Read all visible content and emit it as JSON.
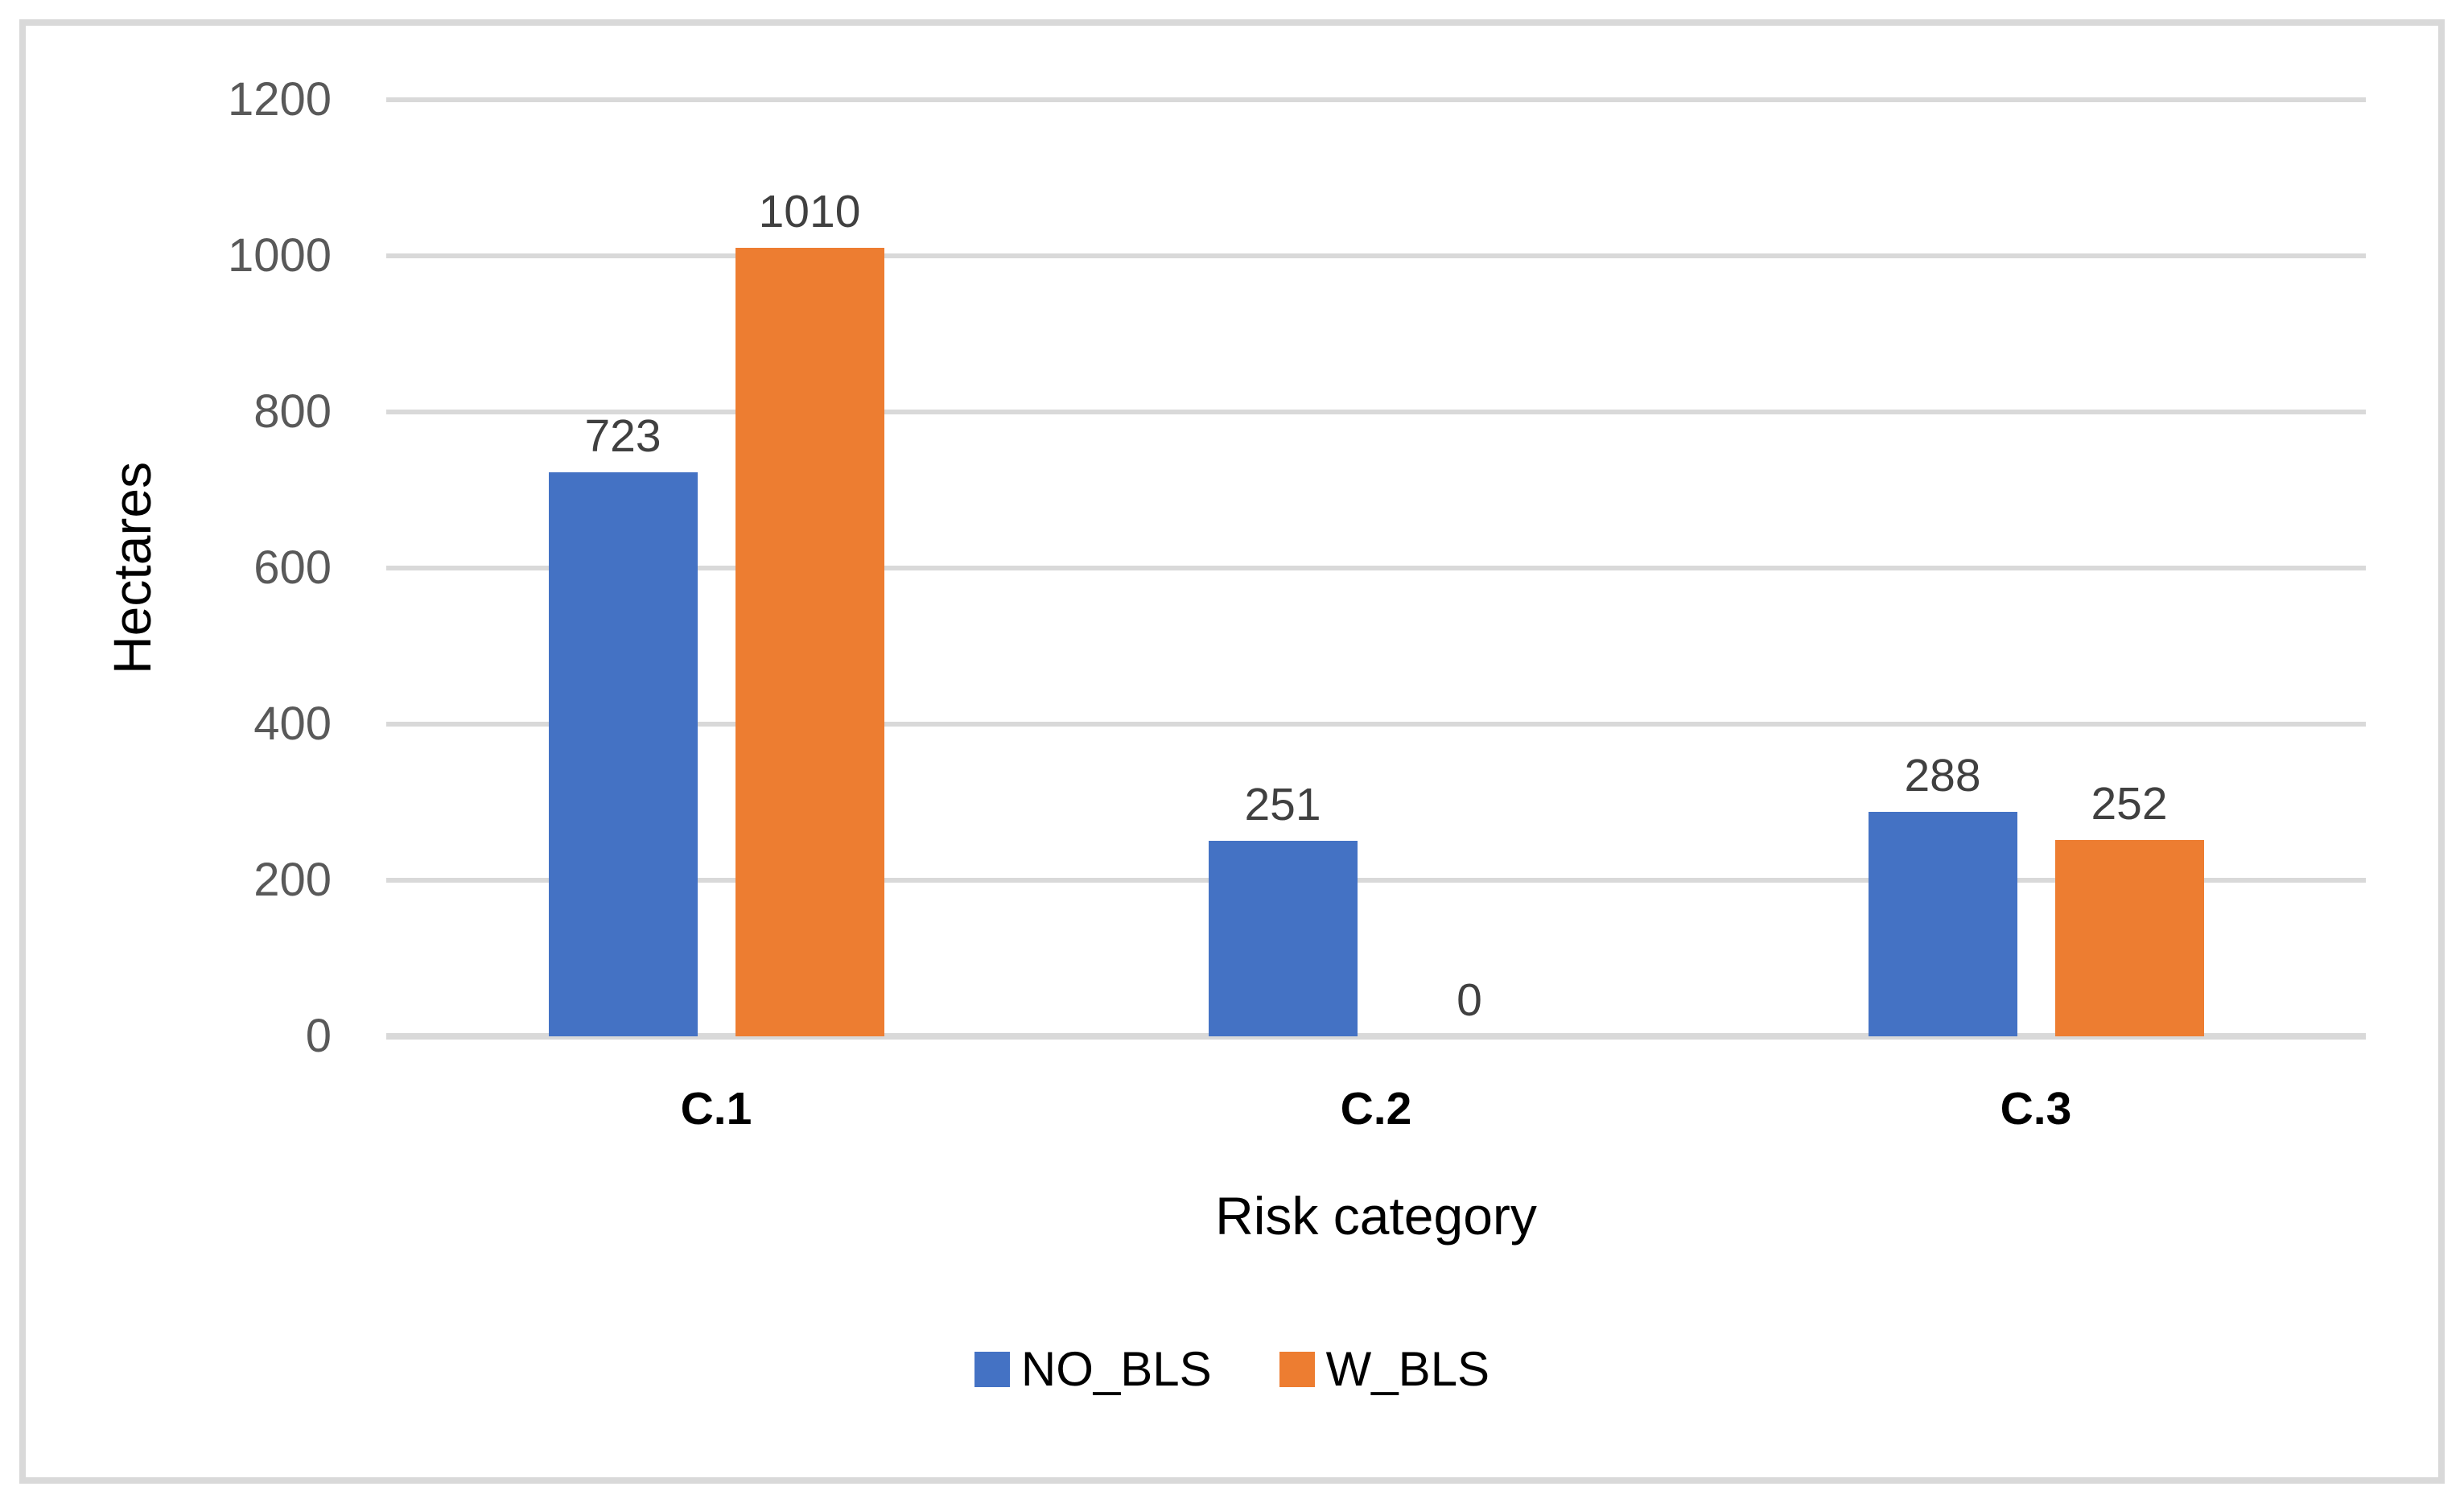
{
  "styles": {
    "background_color": "#FFFFFF",
    "frame_border_color": "#D9D9D9",
    "gridline_color": "#D9D9D9",
    "axis_tick_label_color": "#595959",
    "data_label_color": "#404040",
    "category_label_color": "#000000",
    "axis_title_color": "#000000"
  },
  "chart_data": {
    "type": "bar",
    "title": "",
    "categories": [
      "C.1",
      "C.2",
      "C.3"
    ],
    "series": [
      {
        "name": "NO_BLS",
        "color": "#4472C4",
        "values": [
          723,
          251,
          288
        ]
      },
      {
        "name": "W_BLS",
        "color": "#ED7D31",
        "values": [
          1010,
          0,
          252
        ]
      }
    ],
    "xlabel": "Risk category",
    "ylabel": "Hectares",
    "ylim": [
      0,
      1200
    ],
    "yticks": [
      0,
      200,
      400,
      600,
      800,
      1000,
      1200
    ],
    "grid": "horizontal",
    "legend_position": "bottom",
    "data_labels_shown": true
  }
}
